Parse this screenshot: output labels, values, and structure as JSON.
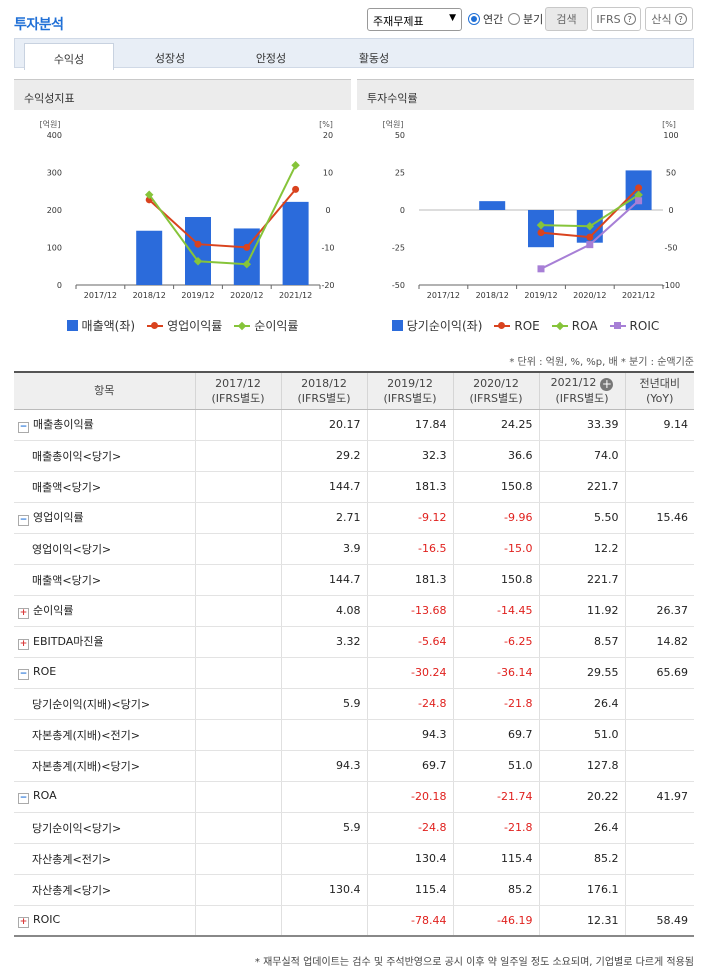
{
  "header": {
    "title": "투자분석",
    "report_type": "주재무제표",
    "period_options": [
      "연간",
      "분기"
    ],
    "search_label": "검색",
    "ifrs_label": "IFRS",
    "formula_label": "산식",
    "help_icon": "?"
  },
  "tabs": [
    "수익성",
    "성장성",
    "안정성",
    "활동성"
  ],
  "panels": {
    "left_title": "수익성지표",
    "right_title": "투자수익률"
  },
  "chart_data": [
    {
      "type": "bar",
      "title": "수익성지표",
      "categories": [
        "2017/12",
        "2018/12",
        "2019/12",
        "2020/12",
        "2021/12"
      ],
      "left_axis": {
        "unit": "[억원]",
        "ticks": [
          400,
          300,
          200,
          100,
          0
        ],
        "ylim": [
          0,
          400
        ]
      },
      "right_axis": {
        "unit": "[%]",
        "ticks": [
          20,
          10,
          0,
          -10,
          -20
        ],
        "ylim": [
          -20,
          20
        ]
      },
      "series": [
        {
          "name": "매출액(좌)",
          "kind": "bar",
          "axis": "left",
          "color": "#2b6bdb",
          "values": [
            null,
            144.7,
            181.3,
            150.8,
            221.7
          ]
        },
        {
          "name": "영업이익률",
          "kind": "line",
          "axis": "right",
          "color": "#d9431e",
          "marker": "circle",
          "values": [
            null,
            2.71,
            -9.12,
            -9.96,
            5.5
          ]
        },
        {
          "name": "순이익률",
          "kind": "line",
          "axis": "right",
          "color": "#86c43a",
          "marker": "diamond",
          "values": [
            null,
            4.08,
            -13.68,
            -14.45,
            11.92
          ]
        }
      ]
    },
    {
      "type": "bar",
      "title": "투자수익률",
      "categories": [
        "2017/12",
        "2018/12",
        "2019/12",
        "2020/12",
        "2021/12"
      ],
      "left_axis": {
        "unit": "[억원]",
        "ticks": [
          50,
          25,
          0,
          -25,
          -50
        ],
        "ylim": [
          -50,
          50
        ]
      },
      "right_axis": {
        "unit": "[%]",
        "ticks": [
          100,
          50,
          0,
          -50,
          -100
        ],
        "ylim": [
          -100,
          100
        ]
      },
      "series": [
        {
          "name": "당기순이익(좌)",
          "kind": "bar",
          "axis": "left",
          "color": "#2b6bdb",
          "values": [
            null,
            5.9,
            -24.8,
            -21.8,
            26.4
          ]
        },
        {
          "name": "ROE",
          "kind": "line",
          "axis": "right",
          "color": "#d9431e",
          "marker": "circle",
          "values": [
            null,
            null,
            -30.24,
            -36.14,
            29.55
          ]
        },
        {
          "name": "ROA",
          "kind": "line",
          "axis": "right",
          "color": "#86c43a",
          "marker": "diamond",
          "values": [
            null,
            null,
            -20.18,
            -21.74,
            20.22
          ]
        },
        {
          "name": "ROIC",
          "kind": "line",
          "axis": "right",
          "color": "#a77fd6",
          "marker": "square",
          "values": [
            null,
            null,
            -78.44,
            -46.19,
            12.31
          ]
        }
      ]
    }
  ],
  "notes": "* 단위 : 억원, %, %p, 배   * 분기 : 순액기준",
  "table": {
    "headers": [
      [
        "항목",
        ""
      ],
      [
        "2017/12",
        "(IFRS별도)"
      ],
      [
        "2018/12",
        "(IFRS별도)"
      ],
      [
        "2019/12",
        "(IFRS별도)"
      ],
      [
        "2020/12",
        "(IFRS별도)"
      ],
      [
        "2021/12",
        "(IFRS별도)"
      ],
      [
        "전년대비",
        "(YoY)"
      ]
    ],
    "rows": [
      {
        "label": "매출총이익률",
        "group": "minus",
        "values": [
          "",
          "20.17",
          "17.84",
          "24.25",
          "33.39",
          "9.14"
        ]
      },
      {
        "label": "매출총이익<당기>",
        "group": "",
        "values": [
          "",
          "29.2",
          "32.3",
          "36.6",
          "74.0",
          ""
        ]
      },
      {
        "label": "매출액<당기>",
        "group": "",
        "values": [
          "",
          "144.7",
          "181.3",
          "150.8",
          "221.7",
          ""
        ]
      },
      {
        "label": "영업이익률",
        "group": "minus",
        "values": [
          "",
          "2.71",
          "-9.12",
          "-9.96",
          "5.50",
          "15.46"
        ]
      },
      {
        "label": "영업이익<당기>",
        "group": "",
        "values": [
          "",
          "3.9",
          "-16.5",
          "-15.0",
          "12.2",
          ""
        ]
      },
      {
        "label": "매출액<당기>",
        "group": "",
        "values": [
          "",
          "144.7",
          "181.3",
          "150.8",
          "221.7",
          ""
        ]
      },
      {
        "label": "순이익률",
        "group": "plus",
        "values": [
          "",
          "4.08",
          "-13.68",
          "-14.45",
          "11.92",
          "26.37"
        ]
      },
      {
        "label": "EBITDA마진율",
        "group": "plus",
        "values": [
          "",
          "3.32",
          "-5.64",
          "-6.25",
          "8.57",
          "14.82"
        ]
      },
      {
        "label": "ROE",
        "group": "minus",
        "values": [
          "",
          "",
          "-30.24",
          "-36.14",
          "29.55",
          "65.69"
        ]
      },
      {
        "label": "당기순이익(지배)<당기>",
        "group": "",
        "values": [
          "",
          "5.9",
          "-24.8",
          "-21.8",
          "26.4",
          ""
        ]
      },
      {
        "label": "자본총계(지배)<전기>",
        "group": "",
        "values": [
          "",
          "",
          "94.3",
          "69.7",
          "51.0",
          ""
        ]
      },
      {
        "label": "자본총계(지배)<당기>",
        "group": "",
        "values": [
          "",
          "94.3",
          "69.7",
          "51.0",
          "127.8",
          ""
        ]
      },
      {
        "label": "ROA",
        "group": "minus",
        "values": [
          "",
          "",
          "-20.18",
          "-21.74",
          "20.22",
          "41.97"
        ]
      },
      {
        "label": "당기순이익<당기>",
        "group": "",
        "values": [
          "",
          "5.9",
          "-24.8",
          "-21.8",
          "26.4",
          ""
        ]
      },
      {
        "label": "자산총계<전기>",
        "group": "",
        "values": [
          "",
          "",
          "130.4",
          "115.4",
          "85.2",
          ""
        ]
      },
      {
        "label": "자산총계<당기>",
        "group": "",
        "values": [
          "",
          "130.4",
          "115.4",
          "85.2",
          "176.1",
          ""
        ]
      },
      {
        "label": "ROIC",
        "group": "plus",
        "values": [
          "",
          "",
          "-78.44",
          "-46.19",
          "12.31",
          "58.49"
        ]
      }
    ]
  },
  "footnote": "* 재무실적 업데이트는 검수 및 주석반영으로 공시 이후 약 일주일 정도 소요되며, 기업별로 다르게 적용됨"
}
